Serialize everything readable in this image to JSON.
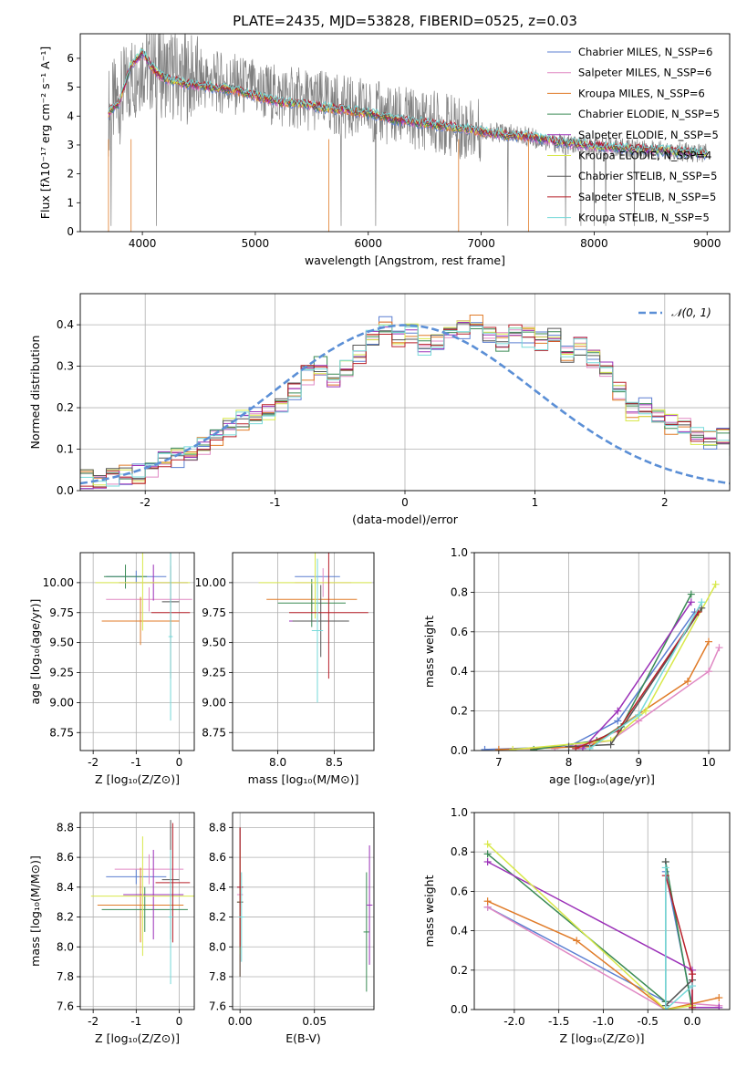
{
  "figure": {
    "title": "PLATE=2435, MJD=53828, FIBERID=0525, z=0.03"
  },
  "chart_data": [
    {
      "id": "spectrum",
      "type": "line",
      "title": "PLATE=2435, MJD=53828, FIBERID=0525, z=0.03",
      "xlabel": "wavelength [Angstrom, rest frame]",
      "ylabel": "Flux [fλ10⁻¹⁷ erg cm⁻² s⁻¹ A⁻¹]",
      "xlim": [
        3450,
        9200
      ],
      "ylim": [
        0,
        6.85
      ],
      "xticks": [
        4000,
        5000,
        6000,
        7000,
        8000,
        9000
      ],
      "yticks": [
        0,
        1,
        2,
        3,
        4,
        5,
        6
      ],
      "grid": false,
      "legend_position": "top-right",
      "data_curve": {
        "x": [
          3700,
          3800,
          3900,
          4000,
          4100,
          4200,
          4400,
          4600,
          4800,
          5000,
          5200,
          5400,
          5600,
          5800,
          6000,
          6200,
          6400,
          6600,
          6800,
          7000,
          7200,
          7400,
          7600,
          7800,
          8000,
          8200,
          8400,
          8600,
          8800,
          9000
        ],
        "y": [
          4.2,
          4.6,
          5.3,
          5.8,
          5.6,
          5.5,
          5.3,
          5.2,
          5.1,
          4.9,
          4.7,
          4.6,
          4.5,
          4.3,
          4.2,
          4.0,
          3.9,
          3.8,
          3.6,
          3.5,
          3.4,
          3.3,
          3.1,
          3.0,
          2.95,
          2.9,
          2.85,
          2.8,
          2.75,
          2.7
        ]
      },
      "model_curve": {
        "x": [
          3700,
          3800,
          3900,
          4000,
          4100,
          4200,
          4400,
          4600,
          4800,
          5000,
          5200,
          5400,
          5600,
          5800,
          6000,
          6200,
          6400,
          6600,
          6800,
          7000,
          7200,
          7400,
          7600,
          7800,
          8000,
          8200,
          8400,
          8600,
          8800,
          9000
        ],
        "y": [
          4.1,
          4.5,
          5.8,
          6.2,
          5.6,
          5.3,
          5.1,
          5.0,
          4.9,
          4.7,
          4.5,
          4.4,
          4.3,
          4.2,
          4.1,
          3.9,
          3.8,
          3.7,
          3.6,
          3.45,
          3.35,
          3.3,
          3.15,
          3.05,
          2.95,
          2.9,
          2.85,
          2.8,
          2.75,
          2.7
        ]
      },
      "series": [
        {
          "name": "Chabrier MILES, N_SSP=6",
          "color": "#5b7fd1"
        },
        {
          "name": "Salpeter MILES, N_SSP=6",
          "color": "#e089c4"
        },
        {
          "name": "Kroupa MILES, N_SSP=6",
          "color": "#e07b28"
        },
        {
          "name": "Chabrier ELODIE, N_SSP=5",
          "color": "#3a8a54"
        },
        {
          "name": "Salpeter ELODIE, N_SSP=5",
          "color": "#9b30b8"
        },
        {
          "name": "Kroupa ELODIE, N_SSP=4",
          "color": "#d8e84a"
        },
        {
          "name": "Chabrier STELIB, N_SSP=5",
          "color": "#555555"
        },
        {
          "name": "Salpeter STELIB, N_SSP=5",
          "color": "#b8202a"
        },
        {
          "name": "Kroupa STELIB, N_SSP=5",
          "color": "#76dada"
        }
      ]
    },
    {
      "id": "residuals",
      "type": "line",
      "xlabel": "(data-model)/error",
      "ylabel": "Normed distribution",
      "xlim": [
        -2.5,
        2.5
      ],
      "ylim": [
        0,
        0.475
      ],
      "xticks": [
        -2,
        -1,
        0,
        1,
        2
      ],
      "yticks": [
        0.0,
        0.1,
        0.2,
        0.3,
        0.4
      ],
      "grid": true,
      "legend_position": "top-right",
      "legend": "𝒩(0, 1)",
      "histogram_bins": {
        "x_start": -2.5,
        "bin_width": 0.1,
        "values": [
          0.03,
          0.03,
          0.035,
          0.04,
          0.04,
          0.05,
          0.07,
          0.08,
          0.09,
          0.11,
          0.13,
          0.15,
          0.17,
          0.18,
          0.19,
          0.2,
          0.24,
          0.28,
          0.3,
          0.26,
          0.29,
          0.33,
          0.37,
          0.4,
          0.36,
          0.38,
          0.35,
          0.36,
          0.38,
          0.39,
          0.41,
          0.37,
          0.36,
          0.38,
          0.37,
          0.36,
          0.37,
          0.33,
          0.35,
          0.32,
          0.29,
          0.24,
          0.19,
          0.2,
          0.17,
          0.16,
          0.15,
          0.13,
          0.12,
          0.13,
          0.11,
          0.09,
          0.08,
          0.08,
          0.07,
          0.06,
          0.05,
          0.04,
          0.03,
          0.02
        ]
      }
    },
    {
      "id": "age-vs-Z",
      "type": "scatter",
      "xlabel": "Z [log₁₀(Z/Z⊙)]",
      "ylabel": "age  [log₁₀(age/yr)]",
      "xlim": [
        -2.3,
        0.35
      ],
      "ylim": [
        8.6,
        10.25
      ],
      "xticks": [
        -2,
        -1,
        0
      ],
      "yticks": [
        8.75,
        9.0,
        9.25,
        9.5,
        9.75,
        10.0
      ],
      "grid": true
    },
    {
      "id": "age-vs-mass",
      "type": "scatter",
      "xlabel": "mass [log₁₀(M/M⊙)]",
      "xlim": [
        7.6,
        8.85
      ],
      "ylim": [
        8.6,
        10.25
      ],
      "xticks": [
        8.0,
        8.5
      ],
      "yticks": [
        8.75,
        9.0,
        9.25,
        9.5,
        9.75,
        10.0
      ],
      "grid": true
    },
    {
      "id": "weight-vs-age",
      "type": "line",
      "xlabel": "age  [log₁₀(age/yr)]",
      "ylabel": "mass weight",
      "xlim": [
        6.65,
        10.3
      ],
      "ylim": [
        0,
        1.0
      ],
      "xticks": [
        7,
        8,
        9,
        10
      ],
      "yticks": [
        0.0,
        0.2,
        0.4,
        0.6,
        0.8,
        1.0
      ],
      "grid": true
    },
    {
      "id": "mass-vs-Z",
      "type": "scatter",
      "xlabel": "Z [log₁₀(Z/Z⊙)]",
      "ylabel": "mass [log₁₀(M/M⊙)]",
      "xlim": [
        -2.3,
        0.35
      ],
      "ylim": [
        7.58,
        8.9
      ],
      "xticks": [
        -2,
        -1,
        0
      ],
      "yticks": [
        7.6,
        7.8,
        8.0,
        8.2,
        8.4,
        8.6,
        8.8
      ],
      "grid": true
    },
    {
      "id": "mass-vs-ebv",
      "type": "scatter",
      "xlabel": "E(B-V)",
      "xlim": [
        -0.005,
        0.09
      ],
      "ylim": [
        7.58,
        8.9
      ],
      "xticks": [
        0.0,
        0.05
      ],
      "yticks": [
        7.6,
        7.8,
        8.0,
        8.2,
        8.4,
        8.6,
        8.8
      ],
      "grid": true
    },
    {
      "id": "weight-vs-Z",
      "type": "line",
      "xlabel": "Z [log₁₀(Z/Z⊙)]",
      "ylabel": "mass weight",
      "xlim": [
        -2.45,
        0.42
      ],
      "ylim": [
        0,
        1.0
      ],
      "xticks": [
        -2.0,
        -1.5,
        -1.0,
        -0.5,
        0.0
      ],
      "yticks": [
        0.0,
        0.2,
        0.4,
        0.6,
        0.8,
        1.0
      ],
      "grid": true
    }
  ]
}
